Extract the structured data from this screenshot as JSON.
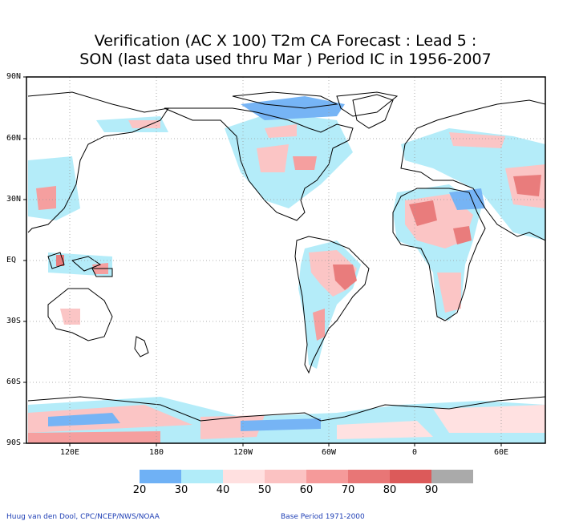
{
  "title": {
    "line1": "Verification (AC X 100) T2m CA Forecast : Lead 5 :",
    "line2": "SON (last data used thru Mar ) Period IC in 1956-2007"
  },
  "lat_labels": [
    "90N",
    "60N",
    "30N",
    "EQ",
    "30S",
    "60S",
    "90S"
  ],
  "lon_labels": [
    "120E",
    "180",
    "120W",
    "60W",
    "0",
    "60E"
  ],
  "colorbar": {
    "labels": [
      "20",
      "30",
      "40",
      "50",
      "60",
      "70",
      "80",
      "90"
    ],
    "colors": [
      "#6fb1f5",
      "#b1ecf9",
      "#ffe0e0",
      "#fbc2c2",
      "#f59a9a",
      "#e87676",
      "#dc5a5a",
      "#aaaaaa"
    ]
  },
  "credits": {
    "left": "Huug van den Dool, CPC/NCEP/NWS/NOAA",
    "right": "Base Period 1971-2000"
  }
}
